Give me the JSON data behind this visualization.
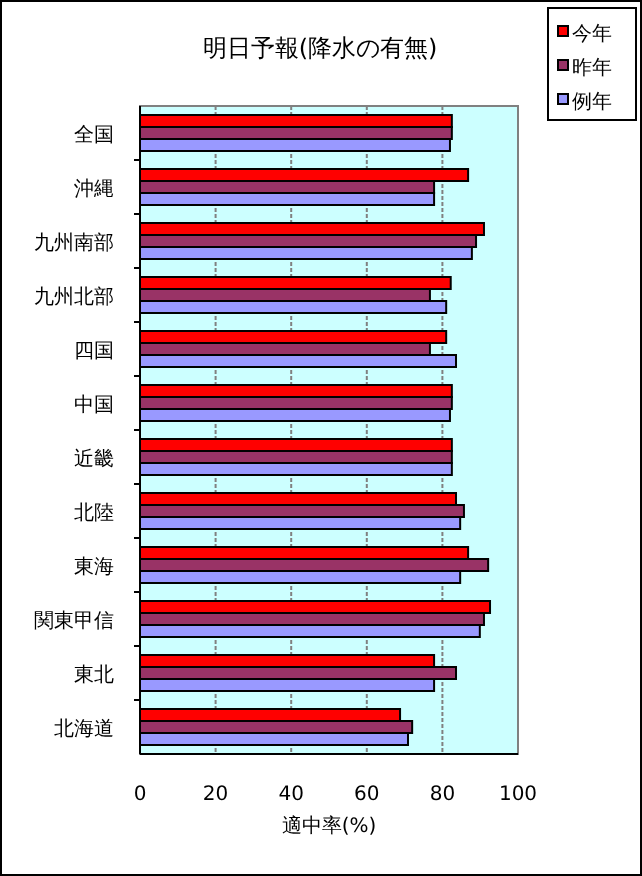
{
  "chart_data": {
    "type": "bar",
    "orientation": "horizontal",
    "title": "明日予報(降水の有無)",
    "xlabel": "適中率(%)",
    "categories": [
      "全国",
      "沖縄",
      "九州南部",
      "九州北部",
      "四国",
      "中国",
      "近畿",
      "北陸",
      "東海",
      "関東甲信",
      "東北",
      "北海道"
    ],
    "series": [
      {
        "name": "今年",
        "color": "#ff0000",
        "values": [
          82.5,
          86.8,
          91.0,
          82.2,
          81.0,
          82.5,
          82.5,
          83.6,
          86.8,
          92.6,
          77.8,
          68.8
        ]
      },
      {
        "name": "昨年",
        "color": "#993366",
        "values": [
          82.5,
          77.8,
          88.9,
          76.7,
          76.7,
          82.5,
          82.5,
          85.7,
          92.1,
          91.0,
          83.6,
          72.0
        ]
      },
      {
        "name": "例年",
        "color": "#9999ff",
        "values": [
          82.0,
          77.8,
          87.8,
          81.0,
          83.6,
          82.0,
          82.5,
          84.7,
          84.7,
          89.9,
          77.8,
          70.9
        ]
      }
    ],
    "xlim": [
      0,
      100
    ],
    "xticks": [
      0,
      20,
      40,
      60,
      80,
      100
    ],
    "grid": "x",
    "legend": "top right"
  }
}
